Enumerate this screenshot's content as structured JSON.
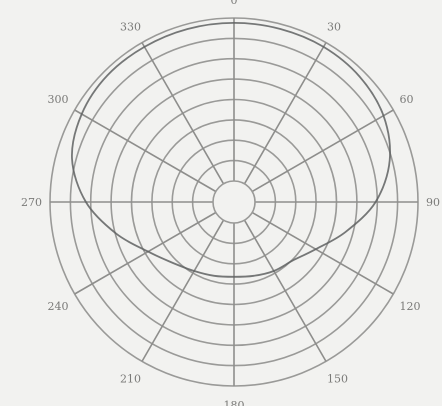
{
  "chart_data": {
    "type": "line",
    "subtype": "polar",
    "angular_unit": "degrees",
    "angular_zero": "top",
    "angular_direction": "clockwise",
    "angle_ticks": [
      "0",
      "30",
      "60",
      "90",
      "120",
      "150",
      "180",
      "210",
      "240",
      "270",
      "300",
      "330"
    ],
    "radial_rings": 8,
    "grid": true,
    "legend": "none",
    "colors": {
      "background": "#f2f2f0",
      "grid": "#9a9a98",
      "series": "#5f6262"
    },
    "series": [
      {
        "theta": [
          0,
          15,
          30,
          45,
          60,
          75,
          90,
          105,
          120,
          135,
          150,
          165,
          180,
          195,
          210,
          225,
          240,
          255,
          270,
          285,
          300,
          315,
          330,
          345
        ],
        "r": [
          0.97,
          0.97,
          0.97,
          0.96,
          0.93,
          0.86,
          0.74,
          0.58,
          0.45,
          0.38,
          0.36,
          0.34,
          0.33,
          0.34,
          0.36,
          0.4,
          0.48,
          0.62,
          0.78,
          0.9,
          0.95,
          0.97,
          0.97,
          0.97
        ]
      }
    ]
  }
}
